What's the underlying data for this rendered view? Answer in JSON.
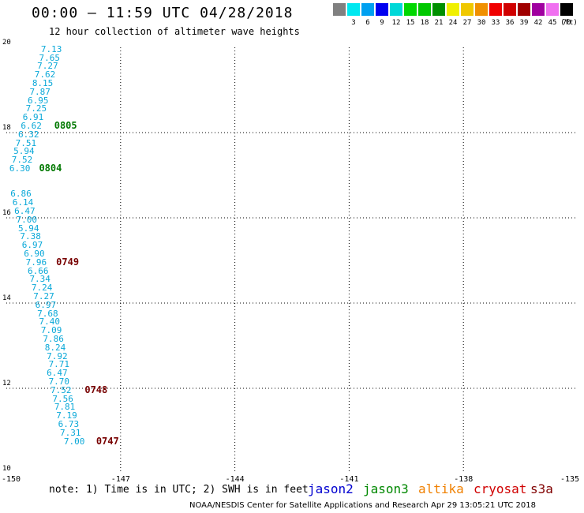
{
  "header": {
    "title": "00:00 – 11:59 UTC 04/28/2018",
    "subtitle": "12 hour collection of altimeter wave heights"
  },
  "legend": {
    "unit": "(ft)",
    "swatches": [
      {
        "label": "",
        "color": "#808080"
      },
      {
        "label": "3",
        "color": "#00e8f0"
      },
      {
        "label": "6",
        "color": "#00a0f0"
      },
      {
        "label": "9",
        "color": "#0000f0"
      },
      {
        "label": "12",
        "color": "#00d8d8"
      },
      {
        "label": "15",
        "color": "#00d800"
      },
      {
        "label": "18",
        "color": "#00c800"
      },
      {
        "label": "21",
        "color": "#009000"
      },
      {
        "label": "24",
        "color": "#f0f000"
      },
      {
        "label": "27",
        "color": "#f0c800"
      },
      {
        "label": "30",
        "color": "#f09000"
      },
      {
        "label": "33",
        "color": "#f00000"
      },
      {
        "label": "36",
        "color": "#d00000"
      },
      {
        "label": "39",
        "color": "#a00000"
      },
      {
        "label": "42",
        "color": "#a000a0"
      },
      {
        "label": "45",
        "color": "#f070f0"
      },
      {
        "label": "70",
        "color": "#000000"
      }
    ]
  },
  "map": {
    "lon_range": [
      -150,
      -135
    ],
    "lat_range": [
      10,
      20
    ],
    "y_ticks": [
      "20",
      "18",
      "16",
      "14",
      "12",
      "10"
    ],
    "x_ticks": [
      "-150",
      "-147",
      "-144",
      "-141",
      "-138",
      "-135"
    ],
    "wave_heights": [
      {
        "value": "7.13",
        "lon": -148.8,
        "lat": 19.95
      },
      {
        "value": "7.65",
        "lon": -148.85,
        "lat": 19.75
      },
      {
        "value": "7.27",
        "lon": -148.9,
        "lat": 19.55
      },
      {
        "value": "7.62",
        "lon": -148.97,
        "lat": 19.35
      },
      {
        "value": "8.15",
        "lon": -149.03,
        "lat": 19.15
      },
      {
        "value": "7.87",
        "lon": -149.1,
        "lat": 18.95
      },
      {
        "value": "6.95",
        "lon": -149.15,
        "lat": 18.75
      },
      {
        "value": "7.25",
        "lon": -149.2,
        "lat": 18.55
      },
      {
        "value": "6.91",
        "lon": -149.28,
        "lat": 18.35
      },
      {
        "value": "6.62",
        "lon": -149.33,
        "lat": 18.15
      },
      {
        "value": "6.32",
        "lon": -149.4,
        "lat": 17.95
      },
      {
        "value": "7.51",
        "lon": -149.47,
        "lat": 17.75
      },
      {
        "value": "5.94",
        "lon": -149.52,
        "lat": 17.55
      },
      {
        "value": "7.52",
        "lon": -149.57,
        "lat": 17.35
      },
      {
        "value": "6.30",
        "lon": -149.63,
        "lat": 17.15
      },
      {
        "value": "6.86",
        "lon": -149.6,
        "lat": 16.55
      },
      {
        "value": "6.14",
        "lon": -149.55,
        "lat": 16.35
      },
      {
        "value": "6.47",
        "lon": -149.5,
        "lat": 16.15
      },
      {
        "value": "7.00",
        "lon": -149.45,
        "lat": 15.95
      },
      {
        "value": "5.94",
        "lon": -149.4,
        "lat": 15.75
      },
      {
        "value": "7.38",
        "lon": -149.35,
        "lat": 15.55
      },
      {
        "value": "6.97",
        "lon": -149.3,
        "lat": 15.35
      },
      {
        "value": "6.90",
        "lon": -149.25,
        "lat": 15.15
      },
      {
        "value": "7.96",
        "lon": -149.2,
        "lat": 14.95
      },
      {
        "value": "6.66",
        "lon": -149.15,
        "lat": 14.75
      },
      {
        "value": "7.34",
        "lon": -149.1,
        "lat": 14.55
      },
      {
        "value": "7.24",
        "lon": -149.05,
        "lat": 14.35
      },
      {
        "value": "7.27",
        "lon": -149.0,
        "lat": 14.15
      },
      {
        "value": "6.97",
        "lon": -148.95,
        "lat": 13.95
      },
      {
        "value": "7.68",
        "lon": -148.9,
        "lat": 13.75
      },
      {
        "value": "7.40",
        "lon": -148.85,
        "lat": 13.55
      },
      {
        "value": "7.09",
        "lon": -148.8,
        "lat": 13.35
      },
      {
        "value": "7.86",
        "lon": -148.75,
        "lat": 13.15
      },
      {
        "value": "8.24",
        "lon": -148.7,
        "lat": 12.95
      },
      {
        "value": "7.92",
        "lon": -148.65,
        "lat": 12.75
      },
      {
        "value": "7.71",
        "lon": -148.6,
        "lat": 12.55
      },
      {
        "value": "6.47",
        "lon": -148.65,
        "lat": 12.35
      },
      {
        "value": "7.70",
        "lon": -148.6,
        "lat": 12.15
      },
      {
        "value": "7.52",
        "lon": -148.55,
        "lat": 11.95
      },
      {
        "value": "7.56",
        "lon": -148.5,
        "lat": 11.75
      },
      {
        "value": "7.81",
        "lon": -148.45,
        "lat": 11.55
      },
      {
        "value": "7.19",
        "lon": -148.4,
        "lat": 11.35
      },
      {
        "value": "6.73",
        "lon": -148.35,
        "lat": 11.15
      },
      {
        "value": "7.31",
        "lon": -148.3,
        "lat": 10.95
      },
      {
        "value": "7.00",
        "lon": -148.2,
        "lat": 10.75
      }
    ],
    "pass_labels": [
      {
        "text": "0805",
        "lon": -148.7,
        "lat": 18.15,
        "color": "#007800"
      },
      {
        "text": "0804",
        "lon": -149.1,
        "lat": 17.15,
        "color": "#007800"
      },
      {
        "text": "0749",
        "lon": -148.65,
        "lat": 14.95,
        "color": "#780000"
      },
      {
        "text": "0748",
        "lon": -147.9,
        "lat": 11.95,
        "color": "#780000"
      },
      {
        "text": "0747",
        "lon": -147.6,
        "lat": 10.75,
        "color": "#780000"
      }
    ]
  },
  "note": "note: 1) Time is in UTC; 2) SWH is in feet",
  "satellites": [
    {
      "name": "jason2",
      "color": "#0000d0"
    },
    {
      "name": "jason3",
      "color": "#008800"
    },
    {
      "name": "altika",
      "color": "#f08000"
    },
    {
      "name": "cryosat",
      "color": "#d00000"
    },
    {
      "name": "s3a",
      "color": "#800000"
    }
  ],
  "footer": "NOAA/NESDIS Center for Satellite Applications and Research    Apr 29 13:05:21 UTC 2018"
}
